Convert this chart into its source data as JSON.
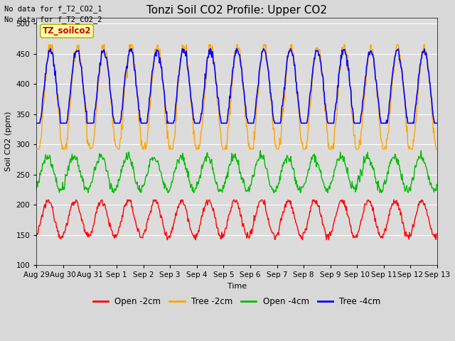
{
  "title": "Tonzi Soil CO2 Profile: Upper CO2",
  "ylabel": "Soil CO2 (ppm)",
  "xlabel": "Time",
  "no_data_text_1": "No data for f_T2_CO2_1",
  "no_data_text_2": "No data for f_T2_CO2_2",
  "legend_label": "TZ_soilco2",
  "ylim": [
    100,
    510
  ],
  "yticks": [
    100,
    150,
    200,
    250,
    300,
    350,
    400,
    450,
    500
  ],
  "xtick_labels": [
    "Aug 29",
    "Aug 30",
    "Aug 31",
    "Sep 1",
    "Sep 2",
    "Sep 3",
    "Sep 4",
    "Sep 5",
    "Sep 6",
    "Sep 7",
    "Sep 8",
    "Sep 9",
    "Sep 10",
    "Sep 11",
    "Sep 12",
    "Sep 13"
  ],
  "colors": {
    "open_2cm": "#ff0000",
    "tree_2cm": "#ffa500",
    "open_4cm": "#00bb00",
    "tree_4cm": "#0000ff"
  },
  "fig_bg": "#d8d8d8",
  "plot_bg": "#dcdcdc",
  "grid_color": "#ffffff",
  "title_fontsize": 11,
  "axis_fontsize": 8,
  "tick_fontsize": 7.5
}
